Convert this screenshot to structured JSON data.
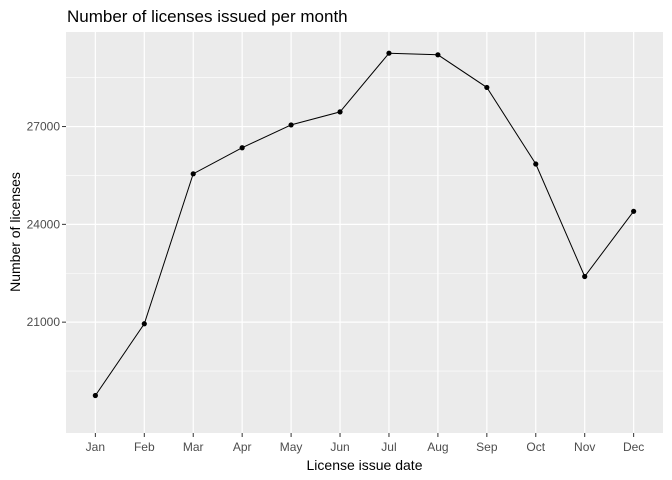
{
  "chart_data": {
    "type": "line",
    "title": "Number of licenses issued per month",
    "xlabel": "License issue date",
    "ylabel": "Number of licenses",
    "categories": [
      "Jan",
      "Feb",
      "Mar",
      "Apr",
      "May",
      "Jun",
      "Jul",
      "Aug",
      "Sep",
      "Oct",
      "Nov",
      "Dec"
    ],
    "series": [
      {
        "values": [
          18750,
          20950,
          25550,
          26350,
          27050,
          27450,
          29250,
          29200,
          28200,
          25850,
          22400,
          24400
        ]
      }
    ],
    "ylim": [
      17600,
      29900
    ],
    "yticks": [
      21000,
      24000,
      27000
    ],
    "grid": true,
    "point_markers": true,
    "colors": {
      "panel": "#ebebeb",
      "grid_major": "#ffffff",
      "line": "#000000",
      "point": "#000000",
      "tick": "#333333"
    }
  }
}
